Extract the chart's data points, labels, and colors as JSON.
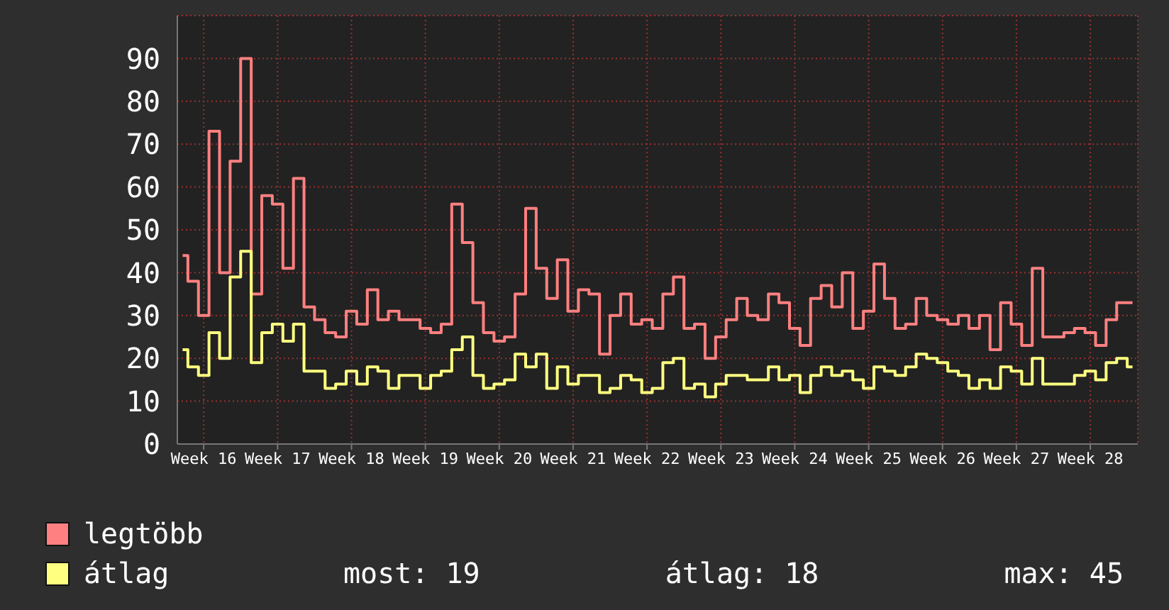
{
  "chart_data": {
    "type": "step",
    "categories": [
      null,
      null,
      "Week 16",
      null,
      null,
      null,
      null,
      null,
      null,
      "Week 17",
      null,
      null,
      null,
      null,
      null,
      null,
      "Week 18",
      null,
      null,
      null,
      null,
      null,
      null,
      "Week 19",
      null,
      null,
      null,
      null,
      null,
      null,
      "Week 20",
      null,
      null,
      null,
      null,
      null,
      null,
      "Week 21",
      null,
      null,
      null,
      null,
      null,
      null,
      "Week 22",
      null,
      null,
      null,
      null,
      null,
      null,
      "Week 23",
      null,
      null,
      null,
      null,
      null,
      null,
      "Week 24",
      null,
      null,
      null,
      null,
      null,
      null,
      "Week 25",
      null,
      null,
      null,
      null,
      null,
      null,
      "Week 26",
      null,
      null,
      null,
      null,
      null,
      null,
      "Week 27",
      null,
      null,
      null,
      null,
      null,
      null,
      "Week 28",
      null,
      null,
      null,
      null
    ],
    "ylim": [
      0,
      100
    ],
    "yticks": [
      0,
      10,
      20,
      30,
      40,
      50,
      60,
      70,
      80,
      90
    ],
    "grid": true,
    "legend": "bottom left",
    "series": [
      {
        "name": "legtöbb",
        "color": "#ff8080",
        "values": [
          44,
          38,
          30,
          73,
          40,
          66,
          90,
          35,
          58,
          56,
          41,
          62,
          32,
          29,
          26,
          25,
          31,
          28,
          36,
          29,
          31,
          29,
          29,
          27,
          26,
          28,
          56,
          47,
          33,
          26,
          24,
          25,
          35,
          55,
          41,
          34,
          43,
          31,
          36,
          35,
          21,
          30,
          35,
          28,
          29,
          27,
          35,
          39,
          27,
          28,
          20,
          25,
          29,
          34,
          30,
          29,
          35,
          33,
          27,
          23,
          34,
          37,
          32,
          40,
          27,
          31,
          42,
          34,
          27,
          28,
          34,
          30,
          29,
          28,
          30,
          27,
          30,
          22,
          33,
          28,
          23,
          41,
          25,
          25,
          26,
          27,
          26,
          23,
          29,
          33,
          33
        ]
      },
      {
        "name": "átlag",
        "color": "#ffff80",
        "values": [
          22,
          18,
          16,
          26,
          20,
          39,
          45,
          19,
          26,
          28,
          24,
          28,
          17,
          17,
          13,
          14,
          17,
          14,
          18,
          17,
          13,
          16,
          16,
          13,
          16,
          17,
          22,
          25,
          16,
          13,
          14,
          15,
          21,
          18,
          21,
          13,
          18,
          14,
          16,
          16,
          12,
          13,
          16,
          15,
          12,
          13,
          19,
          20,
          13,
          14,
          11,
          14,
          16,
          16,
          15,
          15,
          18,
          15,
          16,
          12,
          16,
          18,
          16,
          17,
          15,
          13,
          18,
          17,
          16,
          18,
          21,
          20,
          19,
          17,
          16,
          13,
          15,
          13,
          18,
          17,
          14,
          20,
          14,
          14,
          14,
          16,
          17,
          15,
          19,
          20,
          18
        ]
      }
    ],
    "annotations": [
      "most: 19",
      "átlag: 18",
      "max: 45"
    ]
  }
}
